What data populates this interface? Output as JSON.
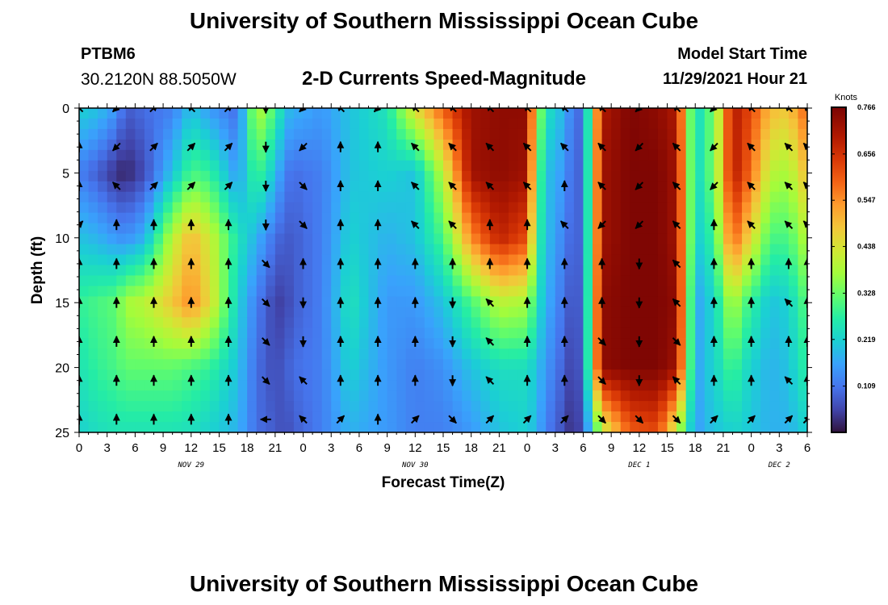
{
  "header": {
    "title": "University of Southern Mississippi Ocean Cube",
    "station_id": "PTBM6",
    "station_coords": "30.2120N  88.5050W",
    "plot_subtitle": "2-D Currents Speed-Magnitude",
    "model_start_label": "Model Start Time",
    "model_start_value": "11/29/2021 Hour 21"
  },
  "footer": {
    "title": "University of Southern Mississippi Ocean Cube"
  },
  "chart_data": {
    "type": "heatmap",
    "title": "2-D Currents Speed-Magnitude",
    "xlabel": "Forecast Time(Z)",
    "ylabel": "Depth (ft)",
    "x_tick_labels": [
      "0",
      "3",
      "6",
      "9",
      "12",
      "15",
      "18",
      "21",
      "0",
      "3",
      "6",
      "9",
      "12",
      "15",
      "18",
      "21",
      "0",
      "3",
      "6",
      "9",
      "12",
      "15",
      "18",
      "21",
      "0",
      "3",
      "6"
    ],
    "x_range_hours": [
      0,
      78
    ],
    "date_labels": [
      {
        "label": "NOV 29",
        "hour": 12
      },
      {
        "label": "NOV 30",
        "hour": 36
      },
      {
        "label": "DEC 1",
        "hour": 60
      },
      {
        "label": "DEC 2",
        "hour": 75
      }
    ],
    "y_ticks": [
      0,
      5,
      10,
      15,
      20,
      25
    ],
    "y_range": [
      0,
      25
    ],
    "y_inverted": true,
    "colorbar": {
      "label": "Knots",
      "min": 0.0,
      "max": 0.766,
      "tick_values": [
        0.766,
        0.656,
        0.547,
        0.438,
        0.328,
        0.219,
        0.109
      ],
      "tick_labels": [
        "0.766",
        "0.656",
        "0.547",
        "0.438",
        "0.328",
        "0.219",
        "0.109"
      ]
    },
    "speed_profile_hours": [
      0,
      2,
      4,
      5,
      7,
      10,
      12,
      14,
      17,
      19,
      21,
      22,
      23,
      26,
      29,
      33,
      36,
      39,
      42,
      45,
      48,
      49,
      50,
      52,
      53,
      54,
      56,
      59,
      62,
      64,
      66,
      67,
      68,
      70,
      71,
      72,
      74,
      76,
      78
    ],
    "speed_profiles_by_depth": [
      {
        "depth": 0,
        "values": [
          0.22,
          0.2,
          0.15,
          0.08,
          0.1,
          0.12,
          0.2,
          0.15,
          0.1,
          0.4,
          0.3,
          0.2,
          0.18,
          0.15,
          0.2,
          0.25,
          0.45,
          0.6,
          0.72,
          0.74,
          0.74,
          0.4,
          0.25,
          0.18,
          0.1,
          0.1,
          0.7,
          0.76,
          0.74,
          0.7,
          0.2,
          0.3,
          0.32,
          0.7,
          0.66,
          0.62,
          0.5,
          0.48,
          0.6
        ]
      },
      {
        "depth": 5,
        "values": [
          0.12,
          0.08,
          0.03,
          0.02,
          0.06,
          0.2,
          0.3,
          0.28,
          0.15,
          0.3,
          0.2,
          0.12,
          0.1,
          0.12,
          0.2,
          0.22,
          0.2,
          0.4,
          0.72,
          0.74,
          0.72,
          0.35,
          0.2,
          0.15,
          0.08,
          0.1,
          0.72,
          0.76,
          0.76,
          0.72,
          0.2,
          0.3,
          0.32,
          0.7,
          0.64,
          0.58,
          0.4,
          0.38,
          0.5
        ]
      },
      {
        "depth": 10,
        "values": [
          0.2,
          0.18,
          0.15,
          0.14,
          0.18,
          0.4,
          0.5,
          0.42,
          0.25,
          0.18,
          0.1,
          0.08,
          0.08,
          0.12,
          0.22,
          0.18,
          0.2,
          0.3,
          0.55,
          0.68,
          0.62,
          0.3,
          0.2,
          0.12,
          0.08,
          0.1,
          0.72,
          0.76,
          0.76,
          0.72,
          0.2,
          0.25,
          0.28,
          0.6,
          0.52,
          0.45,
          0.3,
          0.3,
          0.4
        ]
      },
      {
        "depth": 15,
        "values": [
          0.28,
          0.3,
          0.32,
          0.38,
          0.4,
          0.48,
          0.55,
          0.45,
          0.22,
          0.12,
          0.05,
          0.05,
          0.08,
          0.12,
          0.25,
          0.15,
          0.15,
          0.2,
          0.3,
          0.4,
          0.38,
          0.25,
          0.18,
          0.1,
          0.06,
          0.1,
          0.74,
          0.76,
          0.76,
          0.74,
          0.15,
          0.2,
          0.22,
          0.4,
          0.32,
          0.28,
          0.2,
          0.22,
          0.32
        ]
      },
      {
        "depth": 20,
        "values": [
          0.25,
          0.28,
          0.3,
          0.32,
          0.32,
          0.32,
          0.3,
          0.28,
          0.2,
          0.1,
          0.06,
          0.08,
          0.1,
          0.12,
          0.22,
          0.15,
          0.12,
          0.14,
          0.2,
          0.24,
          0.24,
          0.2,
          0.15,
          0.08,
          0.04,
          0.1,
          0.74,
          0.76,
          0.76,
          0.72,
          0.15,
          0.2,
          0.22,
          0.3,
          0.25,
          0.22,
          0.18,
          0.2,
          0.28
        ]
      },
      {
        "depth": 25,
        "values": [
          0.22,
          0.24,
          0.25,
          0.25,
          0.25,
          0.25,
          0.24,
          0.22,
          0.18,
          0.1,
          0.08,
          0.06,
          0.08,
          0.12,
          0.18,
          0.15,
          0.12,
          0.12,
          0.15,
          0.2,
          0.22,
          0.18,
          0.12,
          0.06,
          0.02,
          0.08,
          0.4,
          0.6,
          0.62,
          0.4,
          0.15,
          0.18,
          0.2,
          0.22,
          0.22,
          0.2,
          0.18,
          0.18,
          0.22
        ]
      }
    ],
    "arrow_hours": [
      0,
      4,
      8,
      12,
      16,
      20,
      24,
      28,
      32,
      36,
      40,
      44,
      48,
      52,
      56,
      60,
      64,
      68,
      72,
      76,
      78
    ],
    "arrow_depths": [
      0,
      3,
      6,
      9,
      12,
      15,
      18,
      21,
      24
    ],
    "arrow_directions_deg": [
      [
        315,
        225,
        45,
        315,
        45,
        180,
        225,
        315,
        225,
        315,
        315,
        315,
        315,
        315,
        315,
        225,
        315,
        225,
        315,
        315,
        315
      ],
      [
        0,
        225,
        45,
        45,
        45,
        180,
        225,
        0,
        0,
        315,
        315,
        315,
        315,
        315,
        315,
        225,
        315,
        225,
        315,
        315,
        315
      ],
      [
        0,
        315,
        45,
        45,
        45,
        180,
        135,
        0,
        0,
        315,
        315,
        315,
        315,
        0,
        315,
        225,
        315,
        225,
        315,
        315,
        315
      ],
      [
        45,
        0,
        0,
        0,
        0,
        180,
        135,
        0,
        0,
        315,
        315,
        0,
        0,
        315,
        225,
        225,
        315,
        0,
        315,
        315,
        315
      ],
      [
        0,
        0,
        0,
        0,
        0,
        135,
        0,
        0,
        0,
        0,
        0,
        0,
        0,
        0,
        0,
        180,
        315,
        0,
        0,
        0,
        0
      ],
      [
        0,
        0,
        0,
        0,
        0,
        135,
        180,
        0,
        0,
        0,
        180,
        315,
        0,
        0,
        0,
        180,
        315,
        0,
        0,
        315,
        0
      ],
      [
        0,
        0,
        0,
        0,
        0,
        135,
        180,
        0,
        0,
        0,
        180,
        315,
        0,
        0,
        135,
        180,
        135,
        0,
        0,
        0,
        0
      ],
      [
        0,
        0,
        0,
        0,
        0,
        135,
        315,
        0,
        0,
        0,
        180,
        315,
        0,
        0,
        135,
        180,
        315,
        0,
        0,
        315,
        0
      ],
      [
        0,
        0,
        0,
        0,
        0,
        270,
        315,
        45,
        0,
        45,
        135,
        45,
        45,
        45,
        135,
        135,
        135,
        45,
        45,
        45,
        45
      ]
    ]
  }
}
